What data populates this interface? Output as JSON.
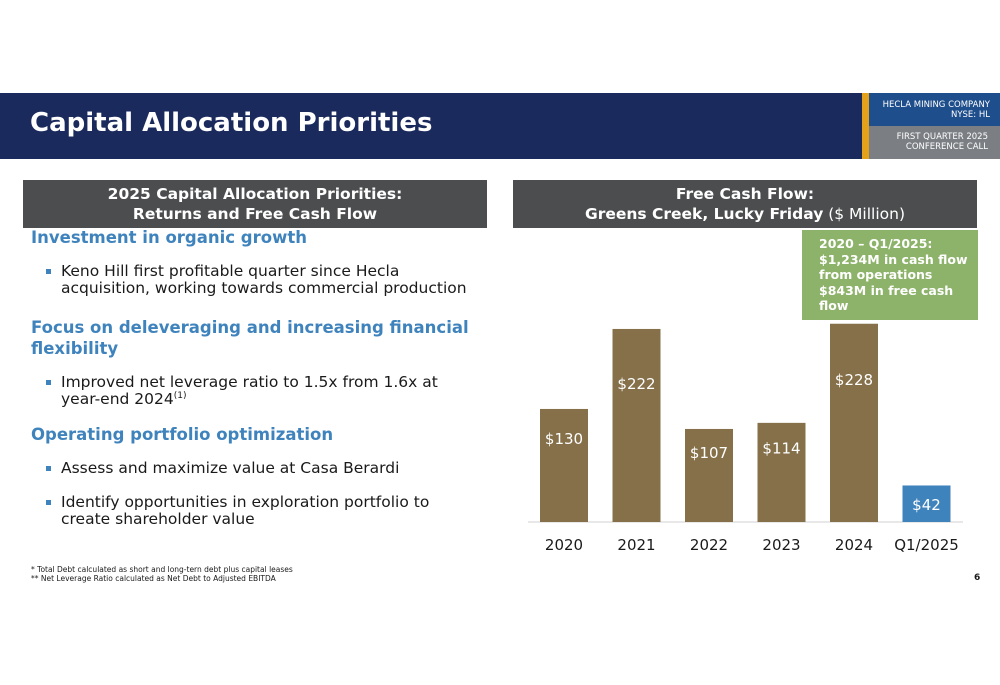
{
  "header": {
    "title": "Capital Allocation Priorities",
    "company": "HECLA MINING COMPANY",
    "ticker": "NYSE: HL",
    "call_line1": "FIRST QUARTER 2025",
    "call_line2": "CONFERENCE CALL"
  },
  "left_panel": {
    "header_line1": "2025 Capital Allocation Priorities:",
    "header_line2": "Returns and Free Cash Flow",
    "sections": [
      {
        "heading": "Investment in organic growth",
        "bullets": [
          "Keno Hill first profitable quarter since Hecla acquisition, working towards commercial production"
        ]
      },
      {
        "heading": "Focus on deleveraging and increasing financial flexibility",
        "bullets": [
          "Improved net leverage ratio to 1.5x from 1.6x at year-end 2024"
        ],
        "bullet_superscript": "(1)"
      },
      {
        "heading": "Operating portfolio optimization",
        "bullets": [
          "Assess and maximize value at Casa Berardi",
          "Identify opportunities in exploration portfolio to create shareholder value"
        ]
      }
    ]
  },
  "footnotes": {
    "line1": "* Total Debt calculated as short and long-tern debt plus capital leases",
    "line2": "** Net Leverage Ratio calculated as Net Debt to Adjusted EBITDA"
  },
  "page_number": "6",
  "right_panel": {
    "header_line1": "Free Cash Flow:",
    "header_line2_bold": "Greens Creek, Lucky Friday",
    "header_line2_normal": " ($ Million)",
    "callout": {
      "line1": "2020 – Q1/2025:",
      "line2": "$1,234M in cash flow",
      "line3": "from operations",
      "line4": "$843M in free cash",
      "line5": "flow"
    }
  },
  "chart_data": {
    "type": "bar",
    "categories": [
      "2020",
      "2021",
      "2022",
      "2023",
      "2024",
      "Q1/2025"
    ],
    "values": [
      130,
      222,
      107,
      114,
      228,
      42
    ],
    "data_labels": [
      "$130",
      "$222",
      "$107",
      "$114",
      "$228",
      "$42"
    ],
    "colors": [
      "#85704a",
      "#85704a",
      "#85704a",
      "#85704a",
      "#85704a",
      "#3f83bd"
    ],
    "ylim": [
      0,
      230
    ],
    "grid": false,
    "legend": "none"
  }
}
